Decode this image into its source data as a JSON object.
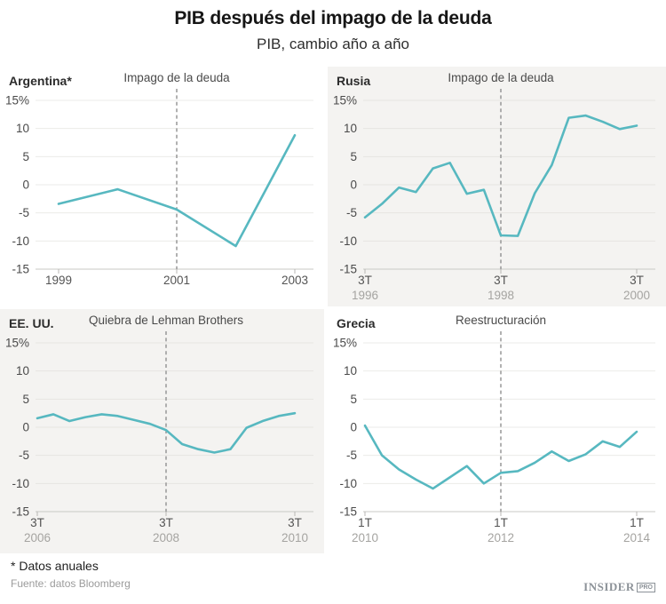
{
  "page": {
    "title": "PIB después del impago de la deuda",
    "subtitle": "PIB, cambio año a año"
  },
  "footer": {
    "note": "* Datos anuales",
    "source": "Fuente: datos Bloomberg",
    "brand": "INSIDER",
    "brand_badge": "PRO"
  },
  "colors": {
    "line": "#57b8c0",
    "event_line": "#979797",
    "panel_gray": "#f4f3f1",
    "grid_on_white": "#ebebe8",
    "grid_on_gray": "#e6e5e1",
    "axis": "#c9c8c5"
  },
  "chart_data": [
    {
      "type": "line",
      "title": "Argentina*",
      "annotation": "Impago de la deuda",
      "event_x": "2001",
      "event_index": 2,
      "frequency": "annual",
      "background": "white",
      "x": [
        "1999",
        "2000",
        "2001",
        "2002",
        "2003"
      ],
      "values": [
        -3.4,
        -0.8,
        -4.4,
        -10.9,
        8.8
      ],
      "x_ticks": [
        {
          "index": 0,
          "label": "1999"
        },
        {
          "index": 2,
          "label": "2001"
        },
        {
          "index": 4,
          "label": "2003"
        }
      ],
      "y_ticks": [
        "15%",
        "10",
        "5",
        "0",
        "-5",
        "-10",
        "-15"
      ],
      "ylim": [
        -15,
        15
      ],
      "ylabel": "PIB, cambio año a año (%)"
    },
    {
      "type": "line",
      "title": "Rusia",
      "annotation": "Impago de la deuda",
      "event_x": "3T 1998",
      "event_index": 8,
      "frequency": "quarterly",
      "background": "gray",
      "x": [
        "3T 1996",
        "4T 1996",
        "1T 1997",
        "2T 1997",
        "3T 1997",
        "4T 1997",
        "1T 1998",
        "2T 1998",
        "3T 1998",
        "4T 1998",
        "1T 1999",
        "2T 1999",
        "3T 1999",
        "4T 1999",
        "1T 2000",
        "2T 2000",
        "3T 2000"
      ],
      "values": [
        -5.8,
        -3.4,
        -0.5,
        -1.3,
        2.9,
        3.9,
        -1.6,
        -0.9,
        -9.0,
        -9.1,
        -1.5,
        3.5,
        11.9,
        12.3,
        11.2,
        9.9,
        10.5
      ],
      "x_ticks": [
        {
          "index": 0,
          "label": "3T",
          "sublabel": "1996"
        },
        {
          "index": 8,
          "label": "3T",
          "sublabel": "1998"
        },
        {
          "index": 16,
          "label": "3T",
          "sublabel": "2000"
        }
      ],
      "y_ticks": [
        "15%",
        "10",
        "5",
        "0",
        "-5",
        "-10",
        "-15"
      ],
      "ylim": [
        -15,
        15
      ],
      "ylabel": "PIB, cambio año a año (%)"
    },
    {
      "type": "line",
      "title": "EE. UU.",
      "annotation": "Quiebra de Lehman Brothers",
      "event_x": "3T 2008",
      "event_index": 8,
      "frequency": "quarterly",
      "background": "gray",
      "x": [
        "3T 2006",
        "4T 2006",
        "1T 2007",
        "2T 2007",
        "3T 2007",
        "4T 2007",
        "1T 2008",
        "2T 2008",
        "3T 2008",
        "4T 2008",
        "1T 2009",
        "2T 2009",
        "3T 2009",
        "4T 2009",
        "1T 2010",
        "2T 2010",
        "3T 2010"
      ],
      "values": [
        1.6,
        2.3,
        1.1,
        1.8,
        2.3,
        2.0,
        1.3,
        0.6,
        -0.5,
        -3.0,
        -3.9,
        -4.5,
        -3.9,
        -0.1,
        1.1,
        2.0,
        2.5
      ],
      "x_ticks": [
        {
          "index": 0,
          "label": "3T",
          "sublabel": "2006"
        },
        {
          "index": 8,
          "label": "3T",
          "sublabel": "2008"
        },
        {
          "index": 16,
          "label": "3T",
          "sublabel": "2010"
        }
      ],
      "y_ticks": [
        "15%",
        "10",
        "5",
        "0",
        "-5",
        "-10",
        "-15"
      ],
      "ylim": [
        -15,
        15
      ],
      "ylabel": "PIB, cambio año a año (%)"
    },
    {
      "type": "line",
      "title": "Grecia",
      "annotation": "Reestructuración",
      "event_x": "1T 2012",
      "event_index": 8,
      "frequency": "quarterly",
      "background": "white",
      "x": [
        "1T 2010",
        "2T 2010",
        "3T 2010",
        "4T 2010",
        "1T 2011",
        "2T 2011",
        "3T 2011",
        "4T 2011",
        "1T 2012",
        "2T 2012",
        "3T 2012",
        "4T 2012",
        "1T 2013",
        "2T 2013",
        "3T 2013",
        "4T 2013",
        "1T 2014"
      ],
      "values": [
        0.3,
        -5.0,
        -7.5,
        -9.3,
        -10.9,
        -8.9,
        -6.9,
        -10.0,
        -8.1,
        -7.8,
        -6.3,
        -4.3,
        -6.0,
        -4.8,
        -2.5,
        -3.5,
        -0.8
      ],
      "x_ticks": [
        {
          "index": 0,
          "label": "1T",
          "sublabel": "2010"
        },
        {
          "index": 8,
          "label": "1T",
          "sublabel": "2012"
        },
        {
          "index": 16,
          "label": "1T",
          "sublabel": "2014"
        }
      ],
      "y_ticks": [
        "15%",
        "10",
        "5",
        "0",
        "-5",
        "-10",
        "-15"
      ],
      "ylim": [
        -15,
        15
      ],
      "ylabel": "PIB, cambio año a año (%)"
    }
  ]
}
